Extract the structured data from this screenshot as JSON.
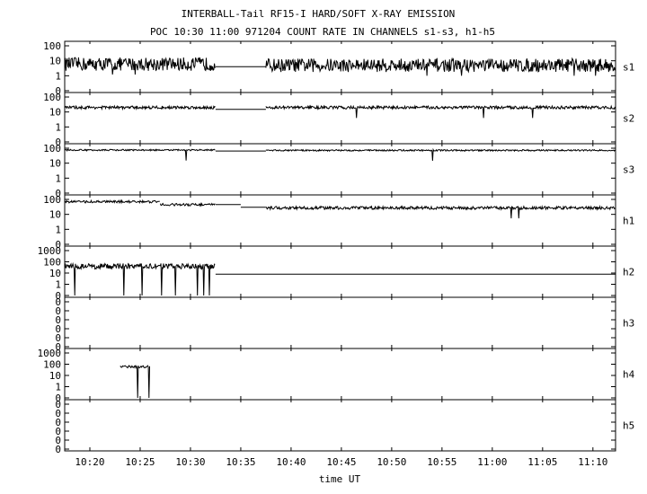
{
  "chart_data": {
    "type": "line",
    "title": "INTERBALL-Tail RF15-I HARD/SOFT X-RAY EMISSION",
    "subtitle": "POC 10:30 11:00 971204  COUNT RATE IN CHANNELS s1-s3, h1-h5",
    "xlabel": "time UT",
    "x_ticks": [
      "10:20",
      "10:25",
      "10:30",
      "10:35",
      "10:40",
      "10:45",
      "10:50",
      "10:55",
      "11:00",
      "11:05",
      "11:10"
    ],
    "x_range": [
      "10:17:30",
      "11:12:15"
    ],
    "y_scale": "log",
    "grid": false,
    "panels": [
      {
        "name": "s1",
        "y_ticks": [
          "100",
          "10",
          "1",
          "0"
        ],
        "ylim": [
          0.1,
          100
        ],
        "segments": [
          {
            "from": "10:17:30",
            "to": "10:32:30",
            "level": 6,
            "noise": 0.45
          },
          {
            "from": "10:32:30",
            "to": "10:37:30",
            "level": 4,
            "noise": 0
          },
          {
            "from": "10:37:30",
            "to": "11:12:15",
            "level": 5,
            "noise": 0.45
          }
        ]
      },
      {
        "name": "s2",
        "y_ticks": [
          "100",
          "10",
          "1",
          "0"
        ],
        "ylim": [
          0.1,
          100
        ],
        "segments": [
          {
            "from": "10:17:30",
            "to": "10:32:30",
            "level": 20,
            "noise": 0.1
          },
          {
            "from": "10:32:30",
            "to": "10:37:30",
            "level": 15,
            "noise": 0
          },
          {
            "from": "10:37:30",
            "to": "11:12:15",
            "level": 20,
            "noise": 0.1
          }
        ]
      },
      {
        "name": "s3",
        "y_ticks": [
          "100",
          "10",
          "1",
          "0"
        ],
        "ylim": [
          0.1,
          100
        ],
        "segments": [
          {
            "from": "10:17:30",
            "to": "10:32:30",
            "level": 75,
            "noise": 0.05
          },
          {
            "from": "10:32:30",
            "to": "10:37:30",
            "level": 65,
            "noise": 0
          },
          {
            "from": "10:37:30",
            "to": "11:12:15",
            "level": 72,
            "noise": 0.05
          }
        ]
      },
      {
        "name": "h1",
        "y_ticks": [
          "100",
          "10",
          "1",
          "0"
        ],
        "ylim": [
          0.1,
          100
        ],
        "segments": [
          {
            "from": "10:17:30",
            "to": "10:27:00",
            "level": 70,
            "noise": 0.08
          },
          {
            "from": "10:27:00",
            "to": "10:32:30",
            "level": 45,
            "noise": 0.08
          },
          {
            "from": "10:32:30",
            "to": "10:35:00",
            "level": 45,
            "noise": 0
          },
          {
            "from": "10:35:00",
            "to": "10:37:30",
            "level": 30,
            "noise": 0
          },
          {
            "from": "10:37:30",
            "to": "11:12:15",
            "level": 27,
            "noise": 0.1
          }
        ]
      },
      {
        "name": "h2",
        "y_ticks": [
          "1000",
          "100",
          "10",
          "1",
          "0"
        ],
        "ylim": [
          0.1,
          1000
        ],
        "segments": [
          {
            "from": "10:17:30",
            "to": "10:32:30",
            "level": 40,
            "noise": 0.25,
            "dropouts": true
          },
          {
            "from": "10:32:30",
            "to": "11:12:15",
            "level": 8,
            "noise": 0
          }
        ]
      },
      {
        "name": "h3",
        "y_ticks": [
          "0",
          "0",
          "0",
          "0",
          "0",
          "0"
        ],
        "ylim": [
          0.1,
          100
        ],
        "segments": []
      },
      {
        "name": "h4",
        "y_ticks": [
          "1000",
          "100",
          "10",
          "1",
          "0"
        ],
        "ylim": [
          0.1,
          1000
        ],
        "segments": [
          {
            "from": "10:23:00",
            "to": "10:26:00",
            "level": 60,
            "noise": 0.1,
            "dropouts": true
          }
        ]
      },
      {
        "name": "h5",
        "y_ticks": [
          "0",
          "0",
          "0",
          "0",
          "0",
          "0"
        ],
        "ylim": [
          0.1,
          100
        ],
        "segments": []
      }
    ]
  }
}
